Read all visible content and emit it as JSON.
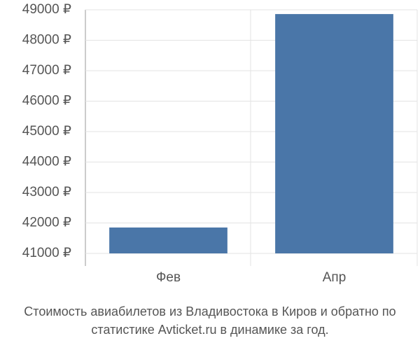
{
  "chart_data": {
    "type": "bar",
    "title": "Стоимость авиабилетов из Владивостока в Киров и обратно по статистике Avticket.ru в динамике за год.",
    "categories": [
      "Фев",
      "Апр"
    ],
    "values": [
      41850,
      48860
    ],
    "color": "#4a76a8",
    "ylim": [
      41000,
      49000
    ],
    "yticks": [
      {
        "value": 41000,
        "label": "41000 ₽"
      },
      {
        "value": 42000,
        "label": "42000 ₽"
      },
      {
        "value": 43000,
        "label": "43000 ₽"
      },
      {
        "value": 44000,
        "label": "44000 ₽"
      },
      {
        "value": 45000,
        "label": "45000 ₽"
      },
      {
        "value": 46000,
        "label": "46000 ₽"
      },
      {
        "value": 47000,
        "label": "47000 ₽"
      },
      {
        "value": 48000,
        "label": "48000 ₽"
      },
      {
        "value": 49000,
        "label": "49000 ₽"
      }
    ],
    "grid": true
  }
}
